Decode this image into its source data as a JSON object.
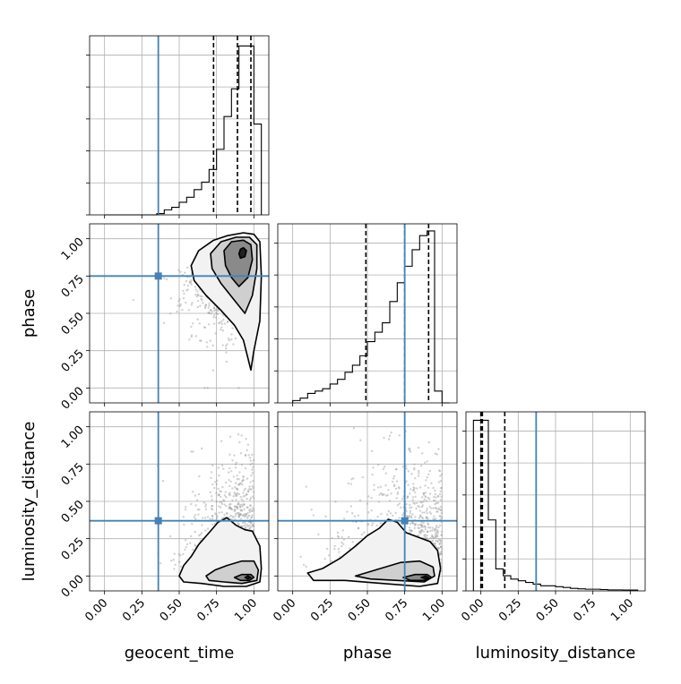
{
  "chart_data": {
    "type": "corner",
    "parameters": [
      "geocent_time",
      "phase",
      "luminosity_distance"
    ],
    "tick_labels": [
      "0.00",
      "0.25",
      "0.50",
      "0.75",
      "1.00"
    ],
    "axis_range": [
      -0.1,
      1.1
    ],
    "truths": {
      "geocent_time": 0.36,
      "phase": 0.75,
      "luminosity_distance": 0.37
    },
    "truth_color": "#4682b4",
    "grid": true,
    "quantile_lines": {
      "geocent_time": [
        0.73,
        0.89,
        0.98
      ],
      "phase": [
        0.49,
        0.75,
        0.91
      ],
      "luminosity_distance": [
        0.0,
        0.01,
        0.16
      ]
    },
    "histograms": {
      "geocent_time": {
        "bin_edges": [
          0.0,
          0.05,
          0.1,
          0.15,
          0.2,
          0.25,
          0.3,
          0.35,
          0.4,
          0.45,
          0.5,
          0.55,
          0.6,
          0.65,
          0.7,
          0.75,
          0.8,
          0.85,
          0.9,
          0.95,
          1.0,
          1.05
        ],
        "counts": [
          0,
          0,
          0,
          0,
          0,
          0,
          0,
          0.5,
          2,
          3,
          5,
          7,
          10,
          13,
          18,
          26,
          39,
          50,
          67,
          67,
          36
        ],
        "ylim": [
          0,
          71
        ]
      },
      "phase": {
        "bin_edges": [
          0.0,
          0.05,
          0.1,
          0.15,
          0.2,
          0.25,
          0.3,
          0.35,
          0.4,
          0.45,
          0.5,
          0.55,
          0.6,
          0.65,
          0.7,
          0.75,
          0.8,
          0.85,
          0.9,
          0.95,
          1.0,
          1.05
        ],
        "counts": [
          1,
          2,
          4,
          5,
          6,
          8,
          10,
          13,
          16,
          20,
          26,
          30,
          34,
          43,
          51,
          58,
          65,
          71,
          73,
          5,
          0
        ],
        "ylim": [
          0,
          76
        ]
      },
      "luminosity_distance": {
        "bin_edges": [
          -0.05,
          0.0,
          0.05,
          0.1,
          0.15,
          0.2,
          0.25,
          0.3,
          0.35,
          0.4,
          0.45,
          0.5,
          0.55,
          0.6,
          0.65,
          0.7,
          0.75,
          0.8,
          0.85,
          0.9,
          0.95,
          1.0,
          1.05
        ],
        "counts": [
          101,
          101,
          42,
          13,
          9,
          7,
          6,
          5,
          4,
          3,
          3,
          2.5,
          2,
          1.5,
          1.2,
          1,
          1,
          0.8,
          0.6,
          0.6,
          0.5,
          0.5
        ],
        "ylim": [
          0,
          106
        ]
      }
    },
    "scatter_panels": [
      {
        "x": "geocent_time",
        "y": "phase",
        "contours": [
          [
            [
              0.98,
              0.12
            ],
            [
              1.0,
              0.25
            ],
            [
              1.04,
              0.45
            ],
            [
              1.05,
              0.75
            ],
            [
              1.04,
              0.98
            ],
            [
              1.0,
              1.03
            ],
            [
              0.93,
              1.04
            ],
            [
              0.82,
              1.02
            ],
            [
              0.73,
              0.99
            ],
            [
              0.63,
              0.92
            ],
            [
              0.58,
              0.82
            ],
            [
              0.6,
              0.72
            ],
            [
              0.68,
              0.62
            ],
            [
              0.78,
              0.52
            ],
            [
              0.87,
              0.42
            ],
            [
              0.93,
              0.32
            ],
            [
              0.96,
              0.2
            ]
          ],
          [
            [
              0.94,
              0.5
            ],
            [
              0.99,
              0.62
            ],
            [
              1.02,
              0.8
            ],
            [
              1.02,
              0.96
            ],
            [
              0.97,
              1.01
            ],
            [
              0.88,
              1.01
            ],
            [
              0.78,
              0.98
            ],
            [
              0.71,
              0.9
            ],
            [
              0.72,
              0.8
            ],
            [
              0.78,
              0.7
            ],
            [
              0.86,
              0.6
            ]
          ],
          [
            [
              0.9,
              0.68
            ],
            [
              0.96,
              0.74
            ],
            [
              0.99,
              0.86
            ],
            [
              0.98,
              0.96
            ],
            [
              0.93,
              0.99
            ],
            [
              0.85,
              0.98
            ],
            [
              0.8,
              0.92
            ],
            [
              0.81,
              0.82
            ],
            [
              0.85,
              0.74
            ]
          ],
          [
            [
              0.91,
              0.87
            ],
            [
              0.94,
              0.88
            ],
            [
              0.95,
              0.92
            ],
            [
              0.93,
              0.94
            ],
            [
              0.91,
              0.93
            ],
            [
              0.9,
              0.9
            ]
          ]
        ]
      },
      {
        "x": "geocent_time",
        "y": "luminosity_distance",
        "contours": [
          [
            [
              0.5,
              0.0
            ],
            [
              0.53,
              0.07
            ],
            [
              0.58,
              0.13
            ],
            [
              0.63,
              0.21
            ],
            [
              0.7,
              0.29
            ],
            [
              0.76,
              0.36
            ],
            [
              0.82,
              0.39
            ],
            [
              0.88,
              0.34
            ],
            [
              0.94,
              0.31
            ],
            [
              0.99,
              0.3
            ],
            [
              1.04,
              0.2
            ],
            [
              1.05,
              0.05
            ],
            [
              1.04,
              -0.04
            ],
            [
              0.95,
              -0.07
            ],
            [
              0.8,
              -0.07
            ],
            [
              0.65,
              -0.05
            ],
            [
              0.53,
              -0.04
            ]
          ],
          [
            [
              0.68,
              0.0
            ],
            [
              0.74,
              0.04
            ],
            [
              0.82,
              0.07
            ],
            [
              0.92,
              0.1
            ],
            [
              1.0,
              0.1
            ],
            [
              1.03,
              0.04
            ],
            [
              1.02,
              -0.03
            ],
            [
              0.92,
              -0.05
            ],
            [
              0.8,
              -0.04
            ],
            [
              0.7,
              -0.03
            ]
          ],
          [
            [
              0.87,
              -0.01
            ],
            [
              0.92,
              0.01
            ],
            [
              0.98,
              0.01
            ],
            [
              1.0,
              -0.01
            ],
            [
              0.97,
              -0.03
            ],
            [
              0.91,
              -0.03
            ]
          ],
          [
            [
              0.94,
              -0.01
            ],
            [
              0.96,
              0.0
            ],
            [
              0.98,
              -0.01
            ],
            [
              0.96,
              -0.02
            ]
          ]
        ]
      },
      {
        "x": "phase",
        "y": "luminosity_distance",
        "contours": [
          [
            [
              0.1,
              0.02
            ],
            [
              0.2,
              0.05
            ],
            [
              0.32,
              0.12
            ],
            [
              0.42,
              0.2
            ],
            [
              0.5,
              0.27
            ],
            [
              0.58,
              0.32
            ],
            [
              0.64,
              0.38
            ],
            [
              0.7,
              0.36
            ],
            [
              0.76,
              0.29
            ],
            [
              0.84,
              0.26
            ],
            [
              0.92,
              0.23
            ],
            [
              0.97,
              0.17
            ],
            [
              0.99,
              0.05
            ],
            [
              0.97,
              -0.05
            ],
            [
              0.85,
              -0.07
            ],
            [
              0.6,
              -0.05
            ],
            [
              0.35,
              -0.03
            ],
            [
              0.14,
              -0.03
            ]
          ],
          [
            [
              0.42,
              0.0
            ],
            [
              0.52,
              0.03
            ],
            [
              0.62,
              0.06
            ],
            [
              0.72,
              0.09
            ],
            [
              0.85,
              0.1
            ],
            [
              0.94,
              0.06
            ],
            [
              0.95,
              0.0
            ],
            [
              0.88,
              -0.04
            ],
            [
              0.7,
              -0.03
            ],
            [
              0.52,
              -0.02
            ]
          ],
          [
            [
              0.74,
              -0.01
            ],
            [
              0.82,
              0.01
            ],
            [
              0.9,
              0.01
            ],
            [
              0.93,
              -0.01
            ],
            [
              0.88,
              -0.03
            ],
            [
              0.79,
              -0.03
            ]
          ],
          [
            [
              0.86,
              -0.01
            ],
            [
              0.89,
              0.0
            ],
            [
              0.91,
              -0.01
            ],
            [
              0.89,
              -0.02
            ]
          ]
        ]
      }
    ]
  }
}
